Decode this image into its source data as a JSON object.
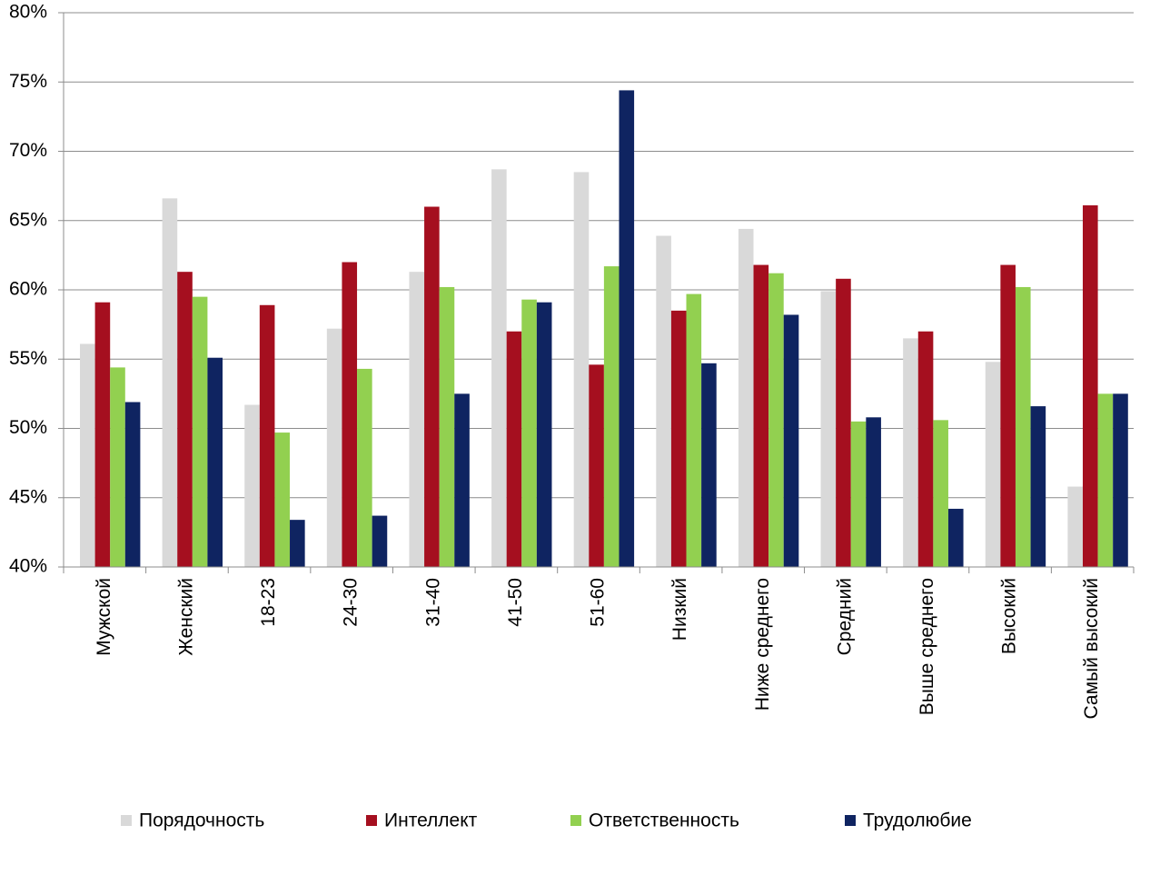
{
  "chart_data": {
    "type": "bar",
    "categories": [
      "Мужской",
      "Женский",
      "18-23",
      "24-30",
      "31-40",
      "41-50",
      "51-60",
      "Низкий",
      "Ниже среднего",
      "Средний",
      "Выше среднего",
      "Высокий",
      "Самый высокий"
    ],
    "series": [
      {
        "name": "Порядочность",
        "color": "#d9d9d9",
        "values": [
          56.1,
          66.6,
          51.7,
          57.2,
          61.3,
          68.7,
          68.5,
          63.9,
          64.4,
          59.9,
          56.5,
          54.8,
          45.8
        ]
      },
      {
        "name": "Интеллект",
        "color": "#a50f1f",
        "values": [
          59.1,
          61.3,
          58.9,
          62.0,
          66.0,
          57.0,
          54.6,
          58.5,
          61.8,
          60.8,
          57.0,
          61.8,
          66.1
        ]
      },
      {
        "name": "Ответственность",
        "color": "#92d050",
        "values": [
          54.4,
          59.5,
          49.7,
          54.3,
          60.2,
          59.3,
          61.7,
          59.7,
          61.2,
          50.5,
          50.6,
          60.2,
          52.5
        ]
      },
      {
        "name": "Трудолюбие",
        "color": "#0f2461",
        "values": [
          51.9,
          55.1,
          43.4,
          43.7,
          52.5,
          59.1,
          74.4,
          54.7,
          58.2,
          50.8,
          44.2,
          51.6,
          52.5
        ]
      }
    ],
    "ylim": [
      40,
      80
    ],
    "yticks": [
      {
        "value": 40,
        "label": "40%"
      },
      {
        "value": 45,
        "label": "45%"
      },
      {
        "value": 50,
        "label": "50%"
      },
      {
        "value": 55,
        "label": "55%"
      },
      {
        "value": 60,
        "label": "60%"
      },
      {
        "value": 65,
        "label": "65%"
      },
      {
        "value": 70,
        "label": "70%"
      },
      {
        "value": 75,
        "label": "75%"
      },
      {
        "value": 80,
        "label": "80%"
      }
    ],
    "grid": true,
    "legend": "bottom"
  }
}
